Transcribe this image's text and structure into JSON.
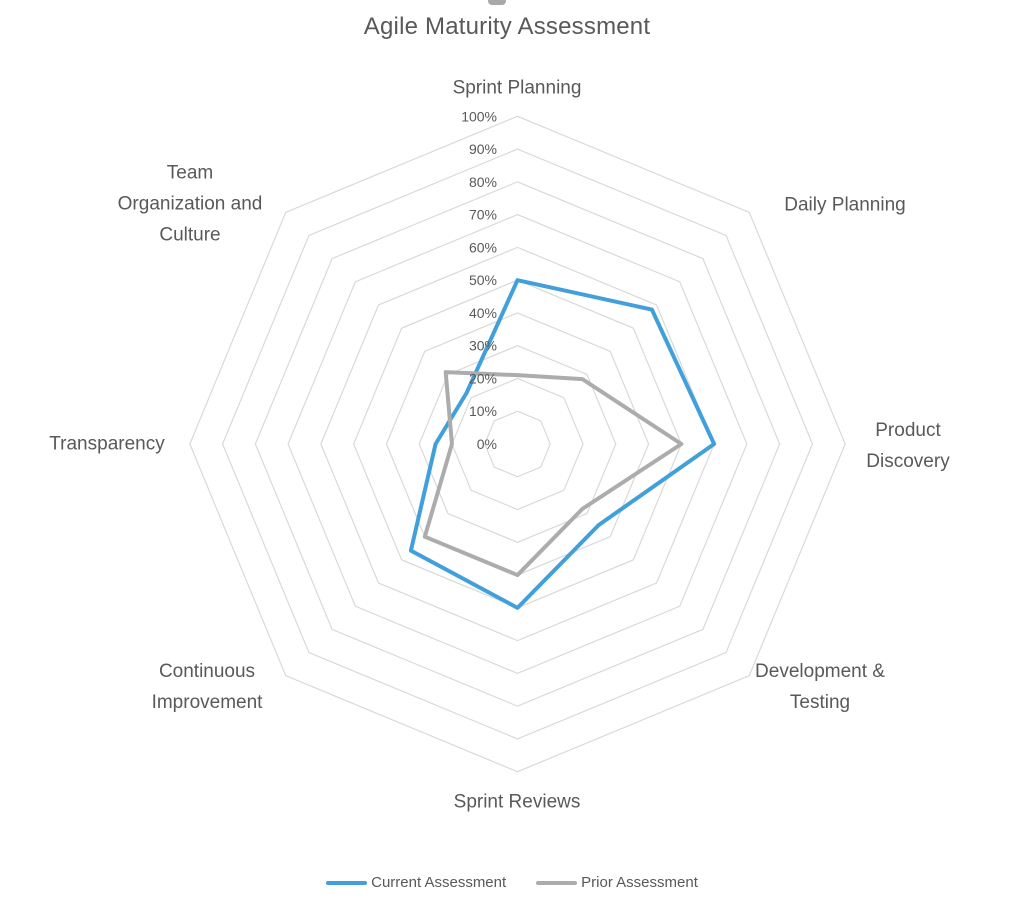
{
  "title": "Agile Maturity Assessment",
  "colors": {
    "text": "#595959",
    "gridline": "#D9D9D9",
    "series_current": "#41A0DC",
    "series_prior": "#ACACAC",
    "background": "#FFFFFF"
  },
  "chart_data": {
    "type": "radar",
    "title": "Agile Maturity Assessment",
    "categories": [
      "Sprint Planning",
      "Daily Planning",
      "Product Discovery",
      "Development & Testing",
      "Sprint Reviews",
      "Continuous Improvement",
      "Transparency",
      "Team Organization and Culture"
    ],
    "category_lines": [
      [
        "Sprint Planning"
      ],
      [
        "Daily Planning"
      ],
      [
        "Product",
        "Discovery"
      ],
      [
        "Development &",
        "Testing"
      ],
      [
        "Sprint Reviews"
      ],
      [
        "Continuous",
        "Improvement"
      ],
      [
        "Transparency"
      ],
      [
        "Team",
        "Organization and",
        "Culture"
      ]
    ],
    "series": [
      {
        "name": "Current Assessment",
        "color": "#41A0DC",
        "values": [
          50,
          58,
          60,
          35,
          50,
          46,
          25,
          22
        ]
      },
      {
        "name": "Prior Assessment",
        "color": "#ACACAC",
        "values": [
          21,
          28,
          50,
          28,
          40,
          40,
          20,
          31
        ]
      }
    ],
    "axis": {
      "min": 0,
      "max": 100,
      "step": 10,
      "tick_labels": [
        "0%",
        "10%",
        "20%",
        "30%",
        "40%",
        "50%",
        "60%",
        "70%",
        "80%",
        "90%",
        "100%"
      ],
      "unit": "percent",
      "gridlines": true,
      "grid_color": "#D9D9D9",
      "grid_shape": "polygon"
    },
    "legend_position": "bottom"
  },
  "legend": {
    "items": [
      {
        "label": "Current Assessment",
        "color": "#41A0DC"
      },
      {
        "label": "Prior Assessment",
        "color": "#ACACAC"
      }
    ]
  }
}
